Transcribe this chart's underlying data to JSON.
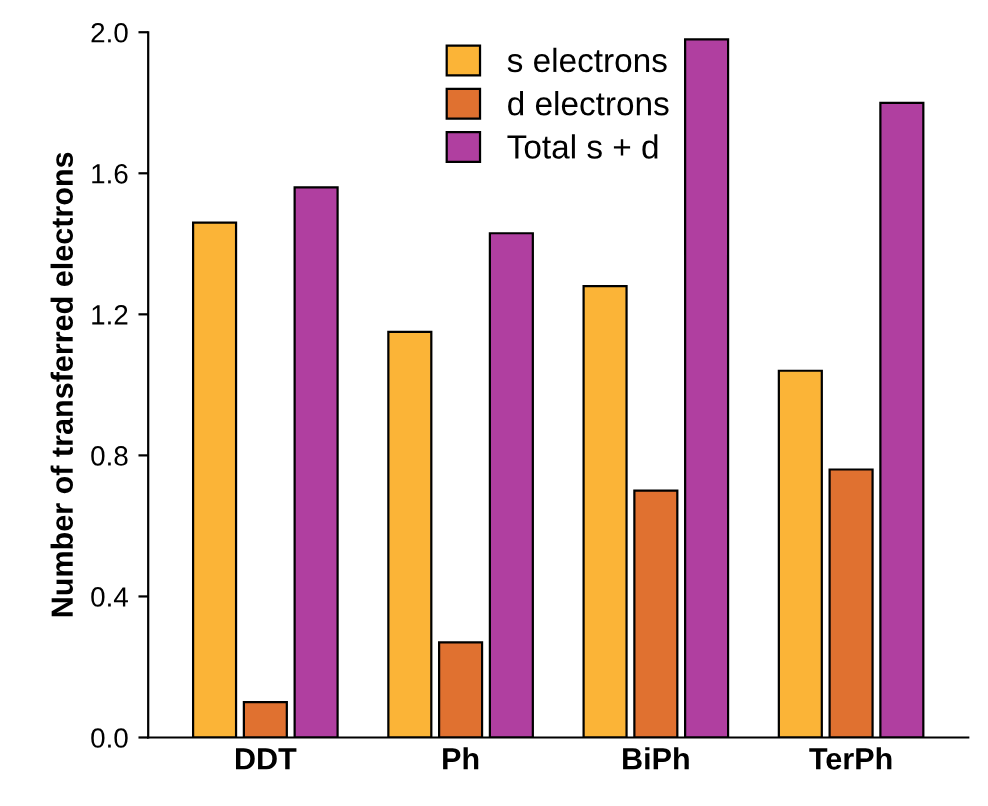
{
  "chart_data": {
    "type": "bar",
    "ylabel": "Number of transferred electrons",
    "categories": [
      "DDT",
      "Ph",
      "BiPh",
      "TerPh"
    ],
    "series": [
      {
        "name": "s electrons",
        "color": "#fbb437",
        "values": [
          1.46,
          1.15,
          1.28,
          1.04
        ]
      },
      {
        "name": "d electrons",
        "color": "#e07130",
        "values": [
          0.1,
          0.27,
          0.7,
          0.76
        ]
      },
      {
        "name": "Total s + d",
        "color": "#b03fa0",
        "values": [
          1.56,
          1.43,
          1.98,
          1.8
        ]
      }
    ],
    "ylim": [
      0,
      2.0
    ],
    "yticks": [
      {
        "value": 0,
        "label": "0.0"
      },
      {
        "value": 0.4,
        "label": "0.4"
      },
      {
        "value": 0.8,
        "label": "0.8"
      },
      {
        "value": 1.2,
        "label": "1.2"
      },
      {
        "value": 1.6,
        "label": "1.6"
      },
      {
        "value": 2.0,
        "label": "2.0"
      }
    ],
    "grid": false,
    "legend": "top"
  }
}
